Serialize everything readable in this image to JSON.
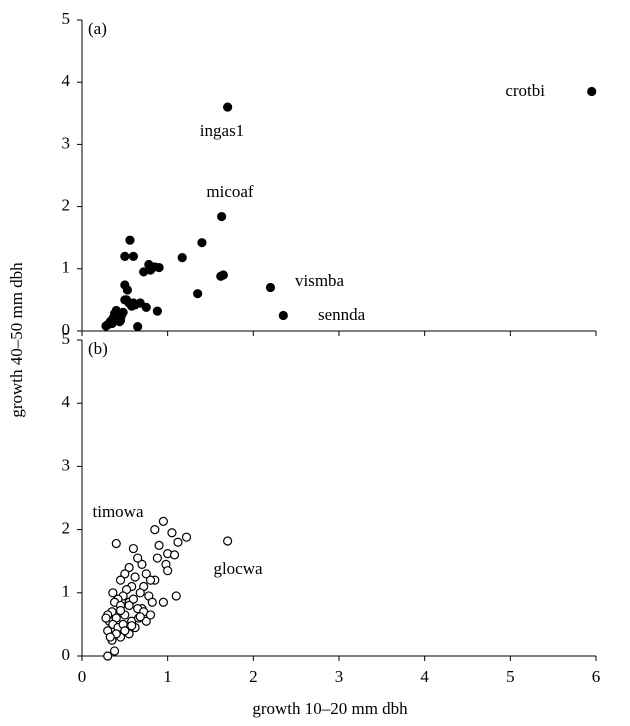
{
  "chart_data": [
    {
      "type": "scatter",
      "panel_label": "(a)",
      "ylabel": "growth 40–50 mm dbh",
      "marker": "filled",
      "color": "#000000",
      "xlim": [
        0,
        6
      ],
      "ylim": [
        0,
        5
      ],
      "yticks": [
        0,
        1,
        2,
        3,
        4,
        5
      ],
      "x": [
        5.95,
        1.7,
        1.63,
        2.2,
        2.35,
        1.4,
        1.17,
        1.65,
        1.62,
        1.35,
        0.56,
        0.6,
        0.5,
        0.78,
        0.85,
        0.9,
        0.8,
        0.72,
        0.5,
        0.53,
        0.3,
        0.33,
        0.36,
        0.38,
        0.42,
        0.46,
        0.5,
        0.55,
        0.62,
        0.68,
        0.75,
        0.88,
        0.4,
        0.44,
        0.48,
        0.58,
        0.65,
        0.35,
        0.4,
        0.45,
        0.52,
        0.6,
        0.28
      ],
      "y": [
        3.85,
        3.6,
        1.84,
        0.7,
        0.25,
        1.42,
        1.18,
        0.9,
        0.88,
        0.6,
        1.46,
        1.2,
        1.2,
        1.07,
        1.03,
        1.02,
        0.98,
        0.95,
        0.74,
        0.66,
        0.1,
        0.15,
        0.2,
        0.28,
        0.3,
        0.25,
        0.5,
        0.45,
        0.42,
        0.45,
        0.38,
        0.32,
        0.2,
        0.15,
        0.3,
        0.4,
        0.07,
        0.12,
        0.33,
        0.17,
        0.5,
        0.45,
        0.08
      ],
      "annotations": [
        "crotbi",
        "ingas1",
        "micoaf",
        "vismba",
        "sennda"
      ]
    },
    {
      "type": "scatter",
      "panel_label": "(b)",
      "xlabel": "growth 10–20 mm dbh",
      "marker": "open",
      "color": "#000000",
      "xlim": [
        0,
        6
      ],
      "ylim": [
        0,
        5
      ],
      "xticks": [
        0,
        1,
        2,
        3,
        4,
        5,
        6
      ],
      "yticks": [
        0,
        1,
        2,
        3,
        4,
        5
      ],
      "x": [
        1.7,
        0.4,
        0.95,
        1.05,
        1.12,
        0.85,
        1.22,
        0.9,
        1.0,
        1.08,
        0.88,
        1.1,
        0.95,
        0.98,
        1.0,
        0.85,
        0.7,
        0.75,
        0.8,
        0.72,
        0.6,
        0.65,
        0.55,
        0.5,
        0.45,
        0.62,
        0.58,
        0.68,
        0.78,
        0.82,
        0.7,
        0.52,
        0.48,
        0.42,
        0.38,
        0.35,
        0.3,
        0.32,
        0.45,
        0.55,
        0.6,
        0.65,
        0.72,
        0.5,
        0.4,
        0.36,
        0.3,
        0.42,
        0.48,
        0.58,
        0.66,
        0.75,
        0.8,
        0.55,
        0.62,
        0.45,
        0.35,
        0.4,
        0.3,
        0.38,
        0.5,
        0.58,
        0.68,
        0.45,
        0.55,
        0.33,
        0.28,
        0.36
      ],
      "y": [
        1.82,
        1.78,
        2.13,
        1.95,
        1.8,
        2.0,
        1.88,
        1.75,
        1.62,
        1.6,
        1.55,
        0.95,
        0.85,
        1.45,
        1.35,
        1.2,
        1.45,
        1.3,
        1.2,
        1.1,
        1.7,
        1.55,
        1.4,
        1.3,
        1.2,
        1.25,
        1.1,
        1.0,
        0.95,
        0.85,
        0.75,
        1.05,
        0.95,
        0.9,
        0.85,
        0.7,
        0.65,
        0.55,
        0.8,
        0.85,
        0.9,
        0.75,
        0.7,
        0.65,
        0.6,
        0.5,
        0.4,
        0.45,
        0.5,
        0.55,
        0.6,
        0.55,
        0.65,
        0.35,
        0.45,
        0.3,
        0.25,
        0.35,
        0.0,
        0.08,
        0.4,
        0.48,
        0.62,
        0.72,
        0.8,
        0.3,
        0.6,
        1.0
      ],
      "annotations": [
        "timowa",
        "glocwa"
      ]
    }
  ]
}
